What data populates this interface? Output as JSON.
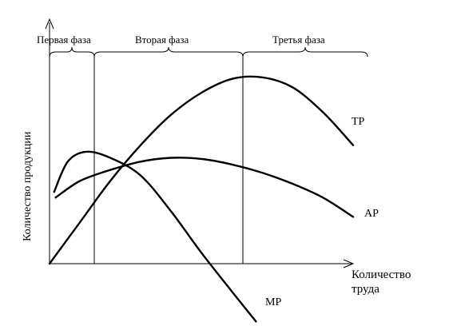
{
  "chart_data": {
    "type": "line",
    "title": "",
    "ylabel": "Количество продукции",
    "xlabel_line1": "Количество",
    "xlabel_line2": "труда",
    "phases": [
      {
        "label": "Первая фаза"
      },
      {
        "label": "Вторая фаза"
      },
      {
        "label": "Третья фаза"
      }
    ],
    "series": [
      {
        "name": "TP",
        "points": [
          [
            0,
            0
          ],
          [
            1,
            7.5
          ],
          [
            2,
            15
          ],
          [
            3,
            21.5
          ],
          [
            4,
            27
          ],
          [
            5,
            31
          ],
          [
            6,
            33.5
          ],
          [
            7,
            33.8
          ],
          [
            8,
            32
          ],
          [
            9,
            27.5
          ],
          [
            10,
            21.5
          ]
        ]
      },
      {
        "name": "AP",
        "points": [
          [
            0.2,
            12
          ],
          [
            1,
            15
          ],
          [
            2,
            17
          ],
          [
            3,
            18.5
          ],
          [
            4,
            19.2
          ],
          [
            5,
            19
          ],
          [
            6,
            18
          ],
          [
            7,
            16.5
          ],
          [
            8,
            14.5
          ],
          [
            9,
            12
          ],
          [
            10,
            8.5
          ]
        ]
      },
      {
        "name": "MP",
        "points": [
          [
            0.15,
            13
          ],
          [
            0.6,
            18.5
          ],
          [
            1.2,
            20.3
          ],
          [
            2,
            19.2
          ],
          [
            3,
            16
          ],
          [
            4,
            9.5
          ],
          [
            5,
            2
          ],
          [
            6,
            -5
          ],
          [
            6.8,
            -10.5
          ]
        ]
      }
    ]
  }
}
